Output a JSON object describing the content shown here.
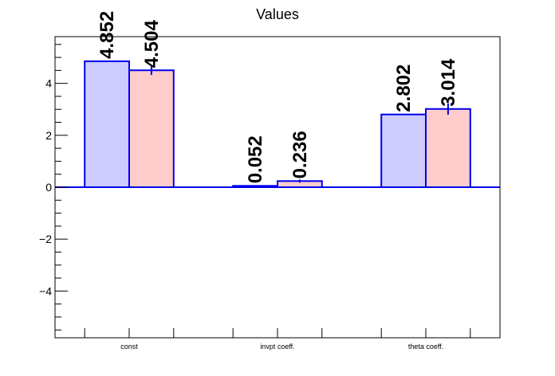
{
  "chart_data": {
    "type": "bar",
    "title": "Values",
    "xlabel": "",
    "ylabel": "",
    "categories": [
      "const",
      "invpt coeff.",
      "theta coeff."
    ],
    "series": [
      {
        "values": [
          4.852,
          0.052,
          2.802
        ],
        "color": "#ccccff",
        "labels": [
          "4.852",
          "0.052",
          "2.802"
        ]
      },
      {
        "values": [
          4.504,
          0.236,
          3.014
        ],
        "errors": [
          0.18,
          0.06,
          0.22
        ],
        "color": "#ffcccc",
        "labels": [
          "4.504",
          "0.236",
          "3.014"
        ]
      }
    ],
    "ylim": [
      -5.8,
      5.8
    ],
    "yticks": [
      -4,
      -2,
      0,
      2,
      4
    ],
    "ytick_labels": [
      "−4",
      "−2",
      "0",
      "2",
      "4"
    ],
    "bar_edge_color": "#0000ee",
    "grid": false,
    "legend": "none"
  }
}
